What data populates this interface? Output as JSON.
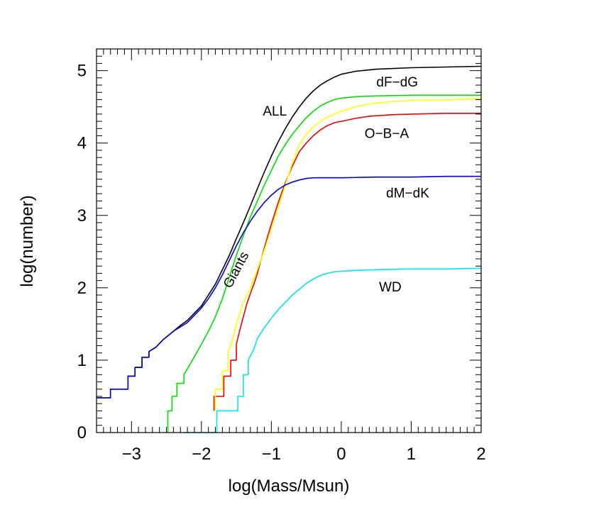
{
  "chart_data": {
    "type": "line",
    "xlabel": "log(Mass/Msun)",
    "ylabel": "log(number)",
    "xlim": [
      -3.5,
      2
    ],
    "ylim": [
      0,
      5.3
    ],
    "x_ticks": [
      -3,
      -2,
      -1,
      0,
      1,
      2
    ],
    "x_tick_labels": [
      "−3",
      "−2",
      "−1",
      "0",
      "1",
      "2"
    ],
    "y_ticks": [
      0,
      1,
      2,
      3,
      4,
      5
    ],
    "y_tick_labels": [
      "0",
      "1",
      "2",
      "3",
      "4",
      "5"
    ],
    "grid": false,
    "series": [
      {
        "name": "ALL",
        "color": "#000000",
        "label_at": [
          -0.95,
          4.38
        ],
        "label_rotation": 0,
        "x": [
          -3.5,
          -3.3,
          -3.3,
          -3.05,
          -3.05,
          -2.95,
          -2.95,
          -2.85,
          -2.85,
          -2.75,
          -2.75,
          -2.65,
          -2.55,
          -2.5,
          -2.45,
          -2.4,
          -2.3,
          -2.2,
          -2.1,
          -2.0,
          -1.9,
          -1.8,
          -1.7,
          -1.6,
          -1.5,
          -1.4,
          -1.3,
          -1.2,
          -1.1,
          -1.0,
          -0.9,
          -0.8,
          -0.7,
          -0.6,
          -0.5,
          -0.4,
          -0.3,
          -0.2,
          -0.1,
          0.0,
          0.2,
          0.5,
          1.0,
          1.5,
          2.0
        ],
        "y": [
          0.48,
          0.48,
          0.6,
          0.6,
          0.78,
          0.78,
          0.9,
          0.9,
          1.04,
          1.04,
          1.12,
          1.18,
          1.28,
          1.32,
          1.36,
          1.4,
          1.48,
          1.55,
          1.65,
          1.75,
          1.9,
          2.05,
          2.25,
          2.45,
          2.68,
          2.9,
          3.13,
          3.37,
          3.6,
          3.82,
          4.02,
          4.2,
          4.36,
          4.5,
          4.62,
          4.72,
          4.8,
          4.86,
          4.91,
          4.95,
          4.99,
          5.02,
          5.04,
          5.05,
          5.06
        ]
      },
      {
        "name": "dF−dG",
        "color": "#00e000",
        "label_at": [
          0.8,
          4.78
        ],
        "label_rotation": 0,
        "x": [
          -2.48,
          -2.48,
          -2.42,
          -2.42,
          -2.35,
          -2.35,
          -2.25,
          -2.25,
          -2.2,
          -2.1,
          -2.0,
          -1.9,
          -1.8,
          -1.7,
          -1.6,
          -1.5,
          -1.4,
          -1.3,
          -1.2,
          -1.1,
          -1.0,
          -0.9,
          -0.8,
          -0.7,
          -0.6,
          -0.5,
          -0.4,
          -0.3,
          -0.2,
          -0.1,
          0.0,
          0.2,
          0.5,
          1.0,
          1.5,
          2.0
        ],
        "y": [
          0,
          0.3,
          0.3,
          0.5,
          0.5,
          0.68,
          0.68,
          0.8,
          0.88,
          1.05,
          1.22,
          1.4,
          1.6,
          1.85,
          2.15,
          2.45,
          2.72,
          2.98,
          3.2,
          3.42,
          3.62,
          3.82,
          3.98,
          4.12,
          4.24,
          4.35,
          4.44,
          4.51,
          4.56,
          4.6,
          4.62,
          4.64,
          4.65,
          4.66,
          4.66,
          4.66
        ]
      },
      {
        "name": "O−B−A",
        "color": "#ee0000",
        "label_at": [
          0.65,
          4.07
        ],
        "label_rotation": 0,
        "x": [
          -1.82,
          -1.82,
          -1.68,
          -1.68,
          -1.58,
          -1.58,
          -1.5,
          -1.5,
          -1.45,
          -1.4,
          -1.35,
          -1.3,
          -1.25,
          -1.2,
          -1.15,
          -1.1,
          -1.05,
          -1.0,
          -0.9,
          -0.8,
          -0.7,
          -0.6,
          -0.5,
          -0.4,
          -0.3,
          -0.2,
          -0.1,
          0.0,
          0.2,
          0.4,
          0.7,
          1.0,
          1.5,
          2.0
        ],
        "y": [
          0.3,
          0.5,
          0.5,
          0.78,
          0.78,
          1.0,
          1.0,
          1.22,
          1.42,
          1.6,
          1.78,
          1.92,
          2.05,
          2.2,
          2.38,
          2.55,
          2.72,
          2.88,
          3.18,
          3.45,
          3.68,
          3.88,
          4.0,
          4.1,
          4.18,
          4.24,
          4.28,
          4.3,
          4.34,
          4.37,
          4.39,
          4.4,
          4.41,
          4.41
        ]
      },
      {
        "name": "",
        "color": "#ffff00",
        "label_at": null,
        "label_rotation": 0,
        "x": [
          -1.8,
          -1.8,
          -1.7,
          -1.7,
          -1.62,
          -1.62,
          -1.55,
          -1.5,
          -1.45,
          -1.4,
          -1.3,
          -1.2,
          -1.1,
          -1.0,
          -0.9,
          -0.8,
          -0.7,
          -0.6,
          -0.5,
          -0.4,
          -0.3,
          -0.2,
          -0.1,
          0.0,
          0.2,
          0.4,
          0.7,
          1.0,
          1.5,
          2.0
        ],
        "y": [
          0.3,
          0.6,
          0.6,
          0.85,
          0.85,
          1.1,
          1.3,
          1.5,
          1.65,
          1.8,
          2.0,
          2.25,
          2.52,
          2.82,
          3.12,
          3.42,
          3.72,
          3.98,
          4.12,
          4.22,
          4.3,
          4.36,
          4.4,
          4.44,
          4.5,
          4.54,
          4.57,
          4.59,
          4.6,
          4.61
        ]
      },
      {
        "name": "dM−dK",
        "color": "#0000dd",
        "label_at": [
          0.95,
          3.25
        ],
        "label_rotation": 0,
        "x": [
          -3.5,
          -3.3,
          -3.3,
          -3.05,
          -3.05,
          -2.95,
          -2.95,
          -2.85,
          -2.85,
          -2.75,
          -2.75,
          -2.65,
          -2.55,
          -2.5,
          -2.45,
          -2.4,
          -2.3,
          -2.2,
          -2.1,
          -2.0,
          -1.9,
          -1.8,
          -1.7,
          -1.6,
          -1.5,
          -1.4,
          -1.3,
          -1.2,
          -1.1,
          -1.0,
          -0.9,
          -0.8,
          -0.7,
          -0.6,
          -0.5,
          -0.4,
          -0.3,
          -0.2,
          -0.1,
          0.0,
          0.5,
          1.0,
          1.5,
          2.0
        ],
        "y": [
          0.48,
          0.48,
          0.6,
          0.6,
          0.78,
          0.78,
          0.9,
          0.9,
          1.04,
          1.04,
          1.12,
          1.18,
          1.28,
          1.32,
          1.36,
          1.4,
          1.46,
          1.52,
          1.62,
          1.72,
          1.85,
          2.0,
          2.18,
          2.38,
          2.58,
          2.76,
          2.92,
          3.06,
          3.18,
          3.28,
          3.36,
          3.42,
          3.46,
          3.49,
          3.51,
          3.52,
          3.52,
          3.52,
          3.52,
          3.52,
          3.53,
          3.53,
          3.54,
          3.54
        ]
      },
      {
        "name": "WD",
        "color": "#00e8e8",
        "label_at": [
          0.7,
          1.95
        ],
        "label_rotation": 0,
        "x": [
          -2.25,
          -1.78,
          -1.78,
          -1.48,
          -1.48,
          -1.4,
          -1.4,
          -1.33,
          -1.33,
          -1.25,
          -1.2,
          -1.1,
          -1.0,
          -0.9,
          -0.8,
          -0.7,
          -0.6,
          -0.5,
          -0.4,
          -0.3,
          -0.2,
          -0.1,
          0.0,
          0.2,
          0.5,
          1.0,
          1.5,
          2.0
        ],
        "y": [
          0.0,
          0.0,
          0.3,
          0.3,
          0.5,
          0.5,
          0.8,
          0.8,
          1.0,
          1.15,
          1.3,
          1.45,
          1.58,
          1.7,
          1.8,
          1.9,
          1.98,
          2.06,
          2.12,
          2.17,
          2.2,
          2.22,
          2.23,
          2.24,
          2.25,
          2.26,
          2.26,
          2.27
        ]
      }
    ],
    "annotations": [
      {
        "text": "Giants",
        "at": [
          -1.45,
          2.22
        ],
        "rotation": -62
      }
    ]
  }
}
